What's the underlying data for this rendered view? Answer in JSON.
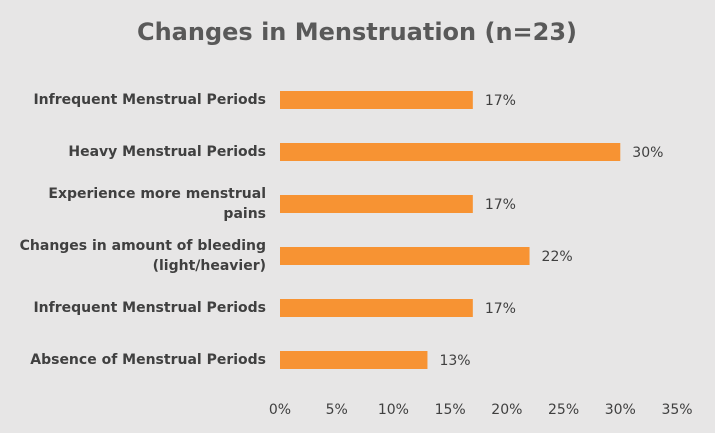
{
  "chart_data": {
    "type": "bar",
    "orientation": "horizontal",
    "title": "Changes in Menstruation (n=23)",
    "categories": [
      "Infrequent Menstrual Periods",
      "Heavy Menstrual Periods",
      "Experience more menstrual pains",
      "Changes in amount of bleeding (light/heavier)",
      "Infrequent Menstrual Periods",
      "Absence of Menstrual Periods"
    ],
    "values": [
      17,
      30,
      17,
      22,
      17,
      13
    ],
    "value_labels": [
      "17%",
      "30%",
      "17%",
      "22%",
      "17%",
      "13%"
    ],
    "color": "#f79333",
    "xlim": [
      0,
      35
    ],
    "xticks": [
      {
        "value": 0,
        "label": "0%"
      },
      {
        "value": 5,
        "label": "5%"
      },
      {
        "value": 10,
        "label": "10%"
      },
      {
        "value": 15,
        "label": "15%"
      },
      {
        "value": 20,
        "label": "20%"
      },
      {
        "value": 25,
        "label": "25%"
      },
      {
        "value": 30,
        "label": "30%"
      },
      {
        "value": 35,
        "label": "35%"
      }
    ],
    "grid": false
  }
}
